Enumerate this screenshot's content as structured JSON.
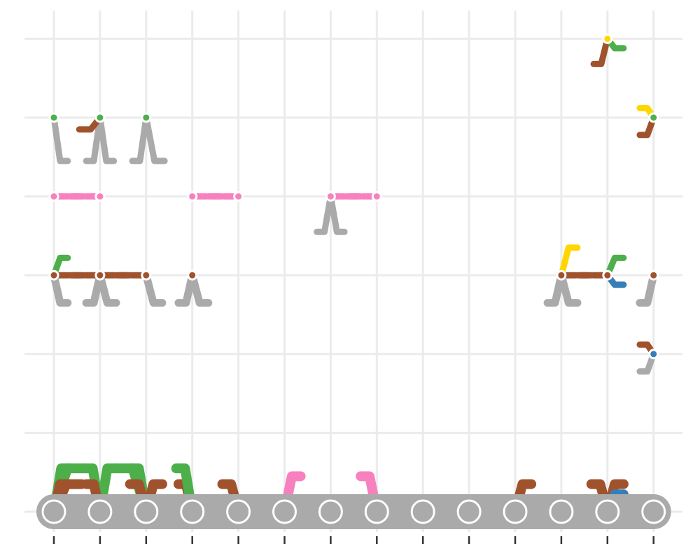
{
  "chart_data": {
    "type": "diagram",
    "title": "",
    "xlabel": "",
    "ylabel": "",
    "x_levels": 14,
    "y_levels": 7,
    "grid": true,
    "legend": "none",
    "colors": {
      "gray": "#aaaaaa",
      "brown": "#a0522d",
      "green": "#4daf4a",
      "pink": "#f781bf",
      "yellow": "#ffd700",
      "blue": "#377eb8"
    },
    "base_nodes": [
      1,
      2,
      3,
      4,
      5,
      6,
      7,
      8,
      9,
      10,
      11,
      12,
      13,
      14
    ],
    "nodes": [
      {
        "x": 13,
        "y": 7,
        "color": "yellow"
      },
      {
        "x": 1,
        "y": 6,
        "color": "green"
      },
      {
        "x": 2,
        "y": 6,
        "color": "green"
      },
      {
        "x": 3,
        "y": 6,
        "color": "green"
      },
      {
        "x": 14,
        "y": 6,
        "color": "green"
      },
      {
        "x": 1,
        "y": 5,
        "color": "pink"
      },
      {
        "x": 2,
        "y": 5,
        "color": "pink"
      },
      {
        "x": 4,
        "y": 5,
        "color": "pink"
      },
      {
        "x": 5,
        "y": 5,
        "color": "pink"
      },
      {
        "x": 7,
        "y": 5,
        "color": "pink"
      },
      {
        "x": 8,
        "y": 5,
        "color": "pink"
      },
      {
        "x": 1,
        "y": 4,
        "color": "brown"
      },
      {
        "x": 2,
        "y": 4,
        "color": "brown"
      },
      {
        "x": 3,
        "y": 4,
        "color": "brown"
      },
      {
        "x": 4,
        "y": 4,
        "color": "brown"
      },
      {
        "x": 12,
        "y": 4,
        "color": "brown"
      },
      {
        "x": 13,
        "y": 4,
        "color": "brown"
      },
      {
        "x": 14,
        "y": 4,
        "color": "brown"
      },
      {
        "x": 14,
        "y": 3,
        "color": "blue"
      }
    ],
    "links": [
      {
        "from": [
          1,
          6
        ],
        "to": [
          1.3,
          5.45
        ],
        "color": "gray"
      },
      {
        "from": [
          2,
          6
        ],
        "to": [
          1.7,
          5.45
        ],
        "color": "gray"
      },
      {
        "from": [
          2,
          6
        ],
        "to": [
          2.3,
          5.45
        ],
        "color": "gray"
      },
      {
        "from": [
          2,
          6
        ],
        "to": [
          1.55,
          5.85
        ],
        "color": "brown"
      },
      {
        "from": [
          3,
          6
        ],
        "to": [
          2.7,
          5.45
        ],
        "color": "gray"
      },
      {
        "from": [
          3,
          6
        ],
        "to": [
          3.4,
          5.45
        ],
        "color": "gray"
      },
      {
        "from": [
          13,
          7
        ],
        "to": [
          12.7,
          6.68
        ],
        "color": "brown"
      },
      {
        "from": [
          13,
          7
        ],
        "to": [
          13.35,
          6.88
        ],
        "color": "green"
      },
      {
        "from": [
          14,
          6
        ],
        "to": [
          13.7,
          5.78
        ],
        "color": "brown"
      },
      {
        "from": [
          14,
          6
        ],
        "to": [
          13.7,
          6.12
        ],
        "color": "yellow"
      },
      {
        "from": [
          1,
          5
        ],
        "to": [
          1.65,
          5
        ],
        "color": "pink"
      },
      {
        "from": [
          2,
          5
        ],
        "to": [
          1.35,
          5
        ],
        "color": "pink"
      },
      {
        "from": [
          4,
          5
        ],
        "to": [
          4.65,
          5
        ],
        "color": "pink"
      },
      {
        "from": [
          5,
          5
        ],
        "to": [
          4.35,
          5
        ],
        "color": "pink"
      },
      {
        "from": [
          7,
          5
        ],
        "to": [
          7.65,
          5
        ],
        "color": "pink"
      },
      {
        "from": [
          8,
          5
        ],
        "to": [
          7.35,
          5
        ],
        "color": "pink"
      },
      {
        "from": [
          7,
          5
        ],
        "to": [
          6.7,
          4.55
        ],
        "color": "gray"
      },
      {
        "from": [
          7,
          5
        ],
        "to": [
          7.3,
          4.55
        ],
        "color": "gray"
      },
      {
        "from": [
          1,
          4
        ],
        "to": [
          1.65,
          4
        ],
        "color": "brown"
      },
      {
        "from": [
          2,
          4
        ],
        "to": [
          1.35,
          4
        ],
        "color": "brown"
      },
      {
        "from": [
          2,
          4
        ],
        "to": [
          2.65,
          4
        ],
        "color": "brown"
      },
      {
        "from": [
          3,
          4
        ],
        "to": [
          2.35,
          4
        ],
        "color": "brown"
      },
      {
        "from": [
          1,
          4
        ],
        "to": [
          1.3,
          3.65
        ],
        "color": "gray"
      },
      {
        "from": [
          2,
          4
        ],
        "to": [
          1.7,
          3.65
        ],
        "color": "gray"
      },
      {
        "from": [
          2,
          4
        ],
        "to": [
          2.35,
          3.65
        ],
        "color": "gray"
      },
      {
        "from": [
          3,
          4
        ],
        "to": [
          3.35,
          3.65
        ],
        "color": "gray"
      },
      {
        "from": [
          4,
          4
        ],
        "to": [
          3.7,
          3.65
        ],
        "color": "gray"
      },
      {
        "from": [
          4,
          4
        ],
        "to": [
          4.35,
          3.65
        ],
        "color": "gray"
      },
      {
        "from": [
          1,
          4
        ],
        "to": [
          1.3,
          4.22
        ],
        "color": "green"
      },
      {
        "from": [
          12,
          4
        ],
        "to": [
          11.7,
          3.65
        ],
        "color": "gray"
      },
      {
        "from": [
          12,
          4
        ],
        "to": [
          12.35,
          3.65
        ],
        "color": "gray"
      },
      {
        "from": [
          12,
          4
        ],
        "to": [
          12.35,
          4.35
        ],
        "color": "yellow"
      },
      {
        "from": [
          12,
          4
        ],
        "to": [
          12.65,
          4
        ],
        "color": "brown"
      },
      {
        "from": [
          13,
          4
        ],
        "to": [
          12.35,
          4
        ],
        "color": "brown"
      },
      {
        "from": [
          13,
          4
        ],
        "to": [
          13.35,
          4.22
        ],
        "color": "green"
      },
      {
        "from": [
          13,
          4
        ],
        "to": [
          13.35,
          3.88
        ],
        "color": "blue"
      },
      {
        "from": [
          14,
          4
        ],
        "to": [
          13.7,
          3.65
        ],
        "color": "gray"
      },
      {
        "from": [
          14,
          3
        ],
        "to": [
          13.7,
          3.12
        ],
        "color": "brown"
      },
      {
        "from": [
          14,
          3
        ],
        "to": [
          13.7,
          2.78
        ],
        "color": "gray"
      },
      {
        "from": [
          1,
          1
        ],
        "to": [
          1.35,
          1.55
        ],
        "color": "green"
      },
      {
        "from": [
          1,
          1
        ],
        "to": [
          1.65,
          1.55
        ],
        "color": "green"
      },
      {
        "from": [
          1,
          1
        ],
        "to": [
          1.3,
          1.35
        ],
        "color": "brown"
      },
      {
        "from": [
          1,
          1
        ],
        "to": [
          1.6,
          1.35
        ],
        "color": "brown"
      },
      {
        "from": [
          2,
          1
        ],
        "to": [
          2.35,
          1.55
        ],
        "color": "green"
      },
      {
        "from": [
          2,
          1
        ],
        "to": [
          1.65,
          1.55
        ],
        "color": "green"
      },
      {
        "from": [
          2,
          1
        ],
        "to": [
          1.7,
          1.35
        ],
        "color": "brown"
      },
      {
        "from": [
          3,
          1
        ],
        "to": [
          2.65,
          1.55
        ],
        "color": "green"
      },
      {
        "from": [
          3,
          1
        ],
        "to": [
          2.35,
          1.55
        ],
        "color": "green"
      },
      {
        "from": [
          3,
          1
        ],
        "to": [
          2.65,
          1.35
        ],
        "color": "brown"
      },
      {
        "from": [
          3,
          1
        ],
        "to": [
          3.35,
          1.35
        ],
        "color": "brown"
      },
      {
        "from": [
          4,
          1
        ],
        "to": [
          3.7,
          1.35
        ],
        "color": "brown"
      },
      {
        "from": [
          4,
          1
        ],
        "to": [
          3.65,
          1.55
        ],
        "color": "green"
      },
      {
        "from": [
          5,
          1
        ],
        "to": [
          4.65,
          1.35
        ],
        "color": "brown"
      },
      {
        "from": [
          6,
          1
        ],
        "to": [
          6.35,
          1.45
        ],
        "color": "pink"
      },
      {
        "from": [
          8,
          1
        ],
        "to": [
          7.65,
          1.45
        ],
        "color": "pink"
      },
      {
        "from": [
          11,
          1
        ],
        "to": [
          11.35,
          1.35
        ],
        "color": "brown"
      },
      {
        "from": [
          13,
          1
        ],
        "to": [
          12.65,
          1.35
        ],
        "color": "brown"
      },
      {
        "from": [
          13,
          1
        ],
        "to": [
          13.35,
          1.35
        ],
        "color": "brown"
      },
      {
        "from": [
          13,
          1
        ],
        "to": [
          13.35,
          1.22
        ],
        "color": "blue"
      }
    ]
  }
}
